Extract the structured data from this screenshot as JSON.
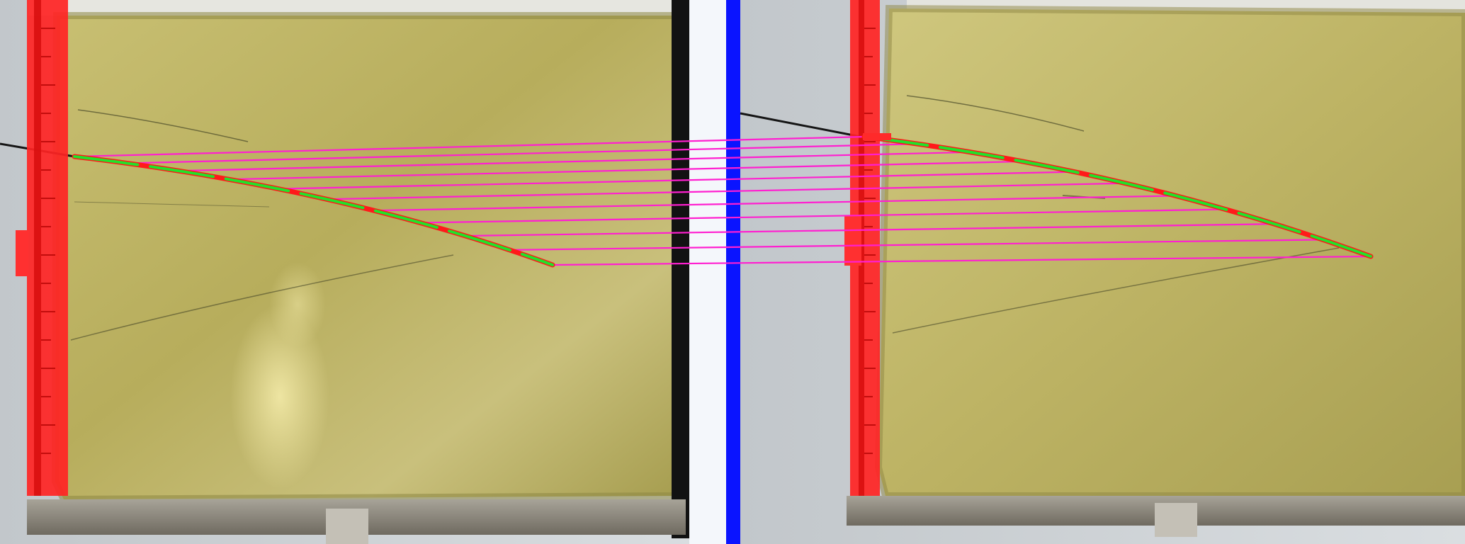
{
  "scene": {
    "description_free": true,
    "colors": {
      "background_gray": "#cfd3d6",
      "gel_yellow": "#b5ab58",
      "gel_yellow_light": "#d2c98a",
      "gel_edge": "#8d8644",
      "ruler_red": "#ff2020",
      "divider_blue": "#0a14ff",
      "divider_white": "#f4f7fb",
      "tray_gray": "#8e8a80",
      "match_line_magenta": "#ff1fd0",
      "crack_green": "#22e22a",
      "crack_red": "#ff1a1a",
      "dark_post": "#121212"
    },
    "left_view": {
      "name": "left-camera-view"
    },
    "right_view": {
      "name": "right-camera-view"
    },
    "match_lines": {
      "count": 11
    }
  }
}
